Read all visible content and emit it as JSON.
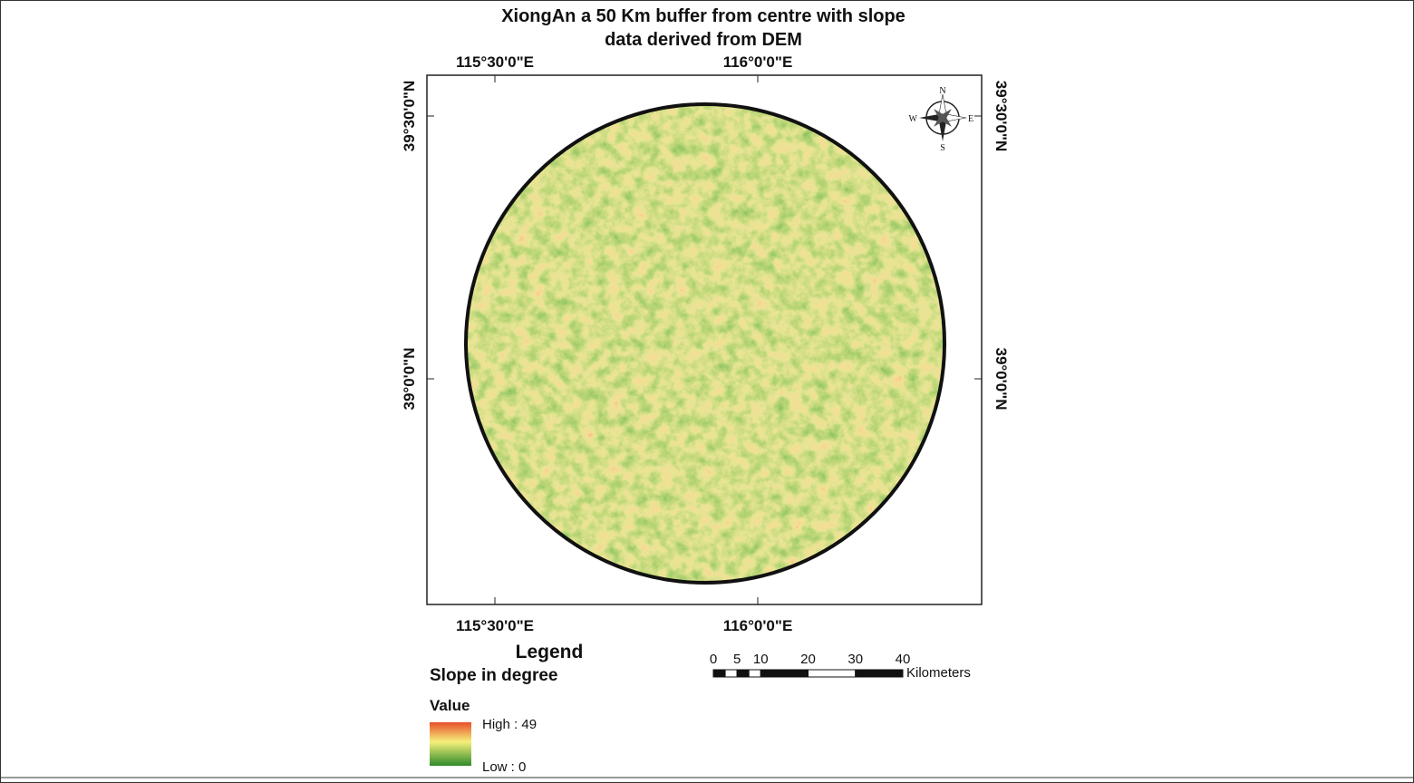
{
  "title": {
    "lines": [
      "XiongAn a 50 Km buffer from centre with slope",
      "data derived from DEM"
    ]
  },
  "graticule": {
    "longitudes": [
      "115°30'0\"E",
      "116°0'0\"E"
    ],
    "latitudes": [
      "39°30'0\"N",
      "39°0'0\"N"
    ]
  },
  "compass": {
    "north": "N",
    "east": "E",
    "south": "S",
    "west": "W"
  },
  "legend": {
    "title": "Legend",
    "layer": "Slope in degree",
    "field": "Value",
    "high": "High : 49",
    "low": "Low : 0"
  },
  "scale_bar": {
    "ticks": [
      0,
      5,
      10,
      20,
      30,
      40
    ],
    "unit": "Kilometers"
  }
}
